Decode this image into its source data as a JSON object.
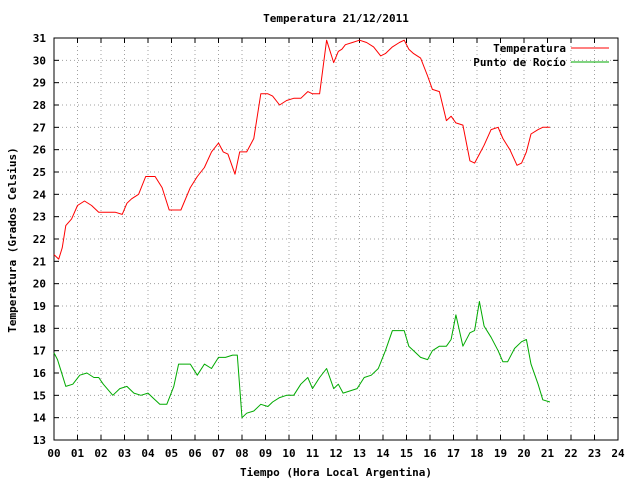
{
  "chart_data": {
    "type": "line",
    "title": "Temperatura 21/12/2011",
    "xlabel": "Tiempo (Hora Local Argentina)",
    "ylabel": "Temperatura (Grados Celsius)",
    "xlim": [
      0,
      24
    ],
    "ylim": [
      13,
      31
    ],
    "x_ticks": [
      "00",
      "01",
      "02",
      "03",
      "04",
      "05",
      "06",
      "07",
      "08",
      "09",
      "10",
      "11",
      "12",
      "13",
      "14",
      "15",
      "16",
      "17",
      "18",
      "19",
      "20",
      "21",
      "22",
      "23",
      "24"
    ],
    "y_ticks": [
      13,
      14,
      15,
      16,
      17,
      18,
      19,
      20,
      21,
      22,
      23,
      24,
      25,
      26,
      27,
      28,
      29,
      30,
      31
    ],
    "grid": true,
    "legend_position": "top-right",
    "series": [
      {
        "name": "Temperatura",
        "color": "#ff0000",
        "x": [
          0,
          0.2,
          0.35,
          0.5,
          0.75,
          1,
          1.3,
          1.6,
          1.9,
          2.1,
          2.6,
          2.9,
          3.1,
          3.3,
          3.6,
          3.9,
          4.1,
          4.3,
          4.6,
          4.9,
          5.1,
          5.4,
          5.8,
          6.1,
          6.4,
          6.7,
          7.0,
          7.2,
          7.4,
          7.7,
          7.9,
          8.2,
          8.5,
          8.8,
          9.1,
          9.3,
          9.6,
          9.9,
          10.2,
          10.5,
          10.8,
          11.0,
          11.3,
          11.6,
          11.9,
          12.1,
          12.25,
          12.4,
          12.7,
          13.0,
          13.3,
          13.6,
          13.9,
          14.1,
          14.4,
          14.7,
          14.9,
          15.1,
          15.3,
          15.6,
          15.9,
          16.1,
          16.4,
          16.7,
          16.9,
          17.1,
          17.4,
          17.7,
          17.9,
          18.1,
          18.3,
          18.6,
          18.9,
          19.1,
          19.4,
          19.7,
          19.9,
          20.1,
          20.3,
          20.6,
          20.8,
          21.1
        ],
        "y": [
          21.3,
          21.1,
          21.6,
          22.6,
          22.9,
          23.5,
          23.7,
          23.5,
          23.2,
          23.2,
          23.2,
          23.1,
          23.6,
          23.8,
          24.0,
          24.8,
          24.8,
          24.8,
          24.3,
          23.3,
          23.3,
          23.3,
          24.3,
          24.8,
          25.2,
          25.9,
          26.3,
          25.9,
          25.8,
          24.9,
          25.9,
          25.9,
          26.5,
          28.5,
          28.5,
          28.4,
          28.0,
          28.2,
          28.3,
          28.3,
          28.6,
          28.5,
          28.5,
          30.9,
          29.9,
          30.4,
          30.5,
          30.7,
          30.8,
          30.9,
          30.8,
          30.6,
          30.2,
          30.3,
          30.6,
          30.8,
          30.9,
          30.5,
          30.3,
          30.1,
          29.3,
          28.7,
          28.6,
          27.3,
          27.5,
          27.2,
          27.1,
          25.5,
          25.4,
          25.8,
          26.2,
          26.9,
          27.0,
          26.5,
          26.0,
          25.3,
          25.4,
          25.9,
          26.7,
          26.9,
          27.0,
          27.0
        ]
      },
      {
        "name": "Punto de Rocío",
        "color": "#00aa00",
        "x": [
          0,
          0.15,
          0.3,
          0.5,
          0.8,
          1.1,
          1.4,
          1.7,
          1.9,
          2.1,
          2.5,
          2.8,
          3.1,
          3.4,
          3.7,
          4.0,
          4.2,
          4.5,
          4.8,
          5.1,
          5.3,
          5.5,
          5.8,
          6.1,
          6.4,
          6.7,
          7.0,
          7.3,
          7.6,
          7.8,
          8.0,
          8.2,
          8.5,
          8.8,
          9.1,
          9.3,
          9.6,
          9.9,
          10.2,
          10.5,
          10.8,
          11.0,
          11.3,
          11.6,
          11.9,
          12.1,
          12.3,
          12.6,
          12.9,
          13.2,
          13.5,
          13.8,
          14.1,
          14.4,
          14.7,
          14.9,
          15.1,
          15.3,
          15.6,
          15.9,
          16.1,
          16.4,
          16.7,
          16.9,
          17.1,
          17.4,
          17.7,
          17.9,
          18.1,
          18.3,
          18.6,
          18.9,
          19.1,
          19.3,
          19.6,
          19.9,
          20.1,
          20.3,
          20.6,
          20.8,
          21.1
        ],
        "y": [
          16.9,
          16.6,
          16.1,
          15.4,
          15.5,
          15.9,
          16.0,
          15.8,
          15.8,
          15.5,
          15.0,
          15.3,
          15.4,
          15.1,
          15.0,
          15.1,
          14.9,
          14.6,
          14.6,
          15.4,
          16.4,
          16.4,
          16.4,
          15.9,
          16.4,
          16.2,
          16.7,
          16.7,
          16.8,
          16.8,
          14.0,
          14.2,
          14.3,
          14.6,
          14.5,
          14.7,
          14.9,
          15.0,
          15.0,
          15.5,
          15.8,
          15.3,
          15.8,
          16.2,
          15.3,
          15.5,
          15.1,
          15.2,
          15.3,
          15.8,
          15.9,
          16.2,
          17.0,
          17.9,
          17.9,
          17.9,
          17.2,
          17.0,
          16.7,
          16.6,
          17.0,
          17.2,
          17.2,
          17.5,
          18.6,
          17.2,
          17.8,
          17.9,
          19.2,
          18.1,
          17.6,
          17.0,
          16.5,
          16.5,
          17.1,
          17.4,
          17.5,
          16.4,
          15.5,
          14.8,
          14.7
        ]
      }
    ]
  }
}
